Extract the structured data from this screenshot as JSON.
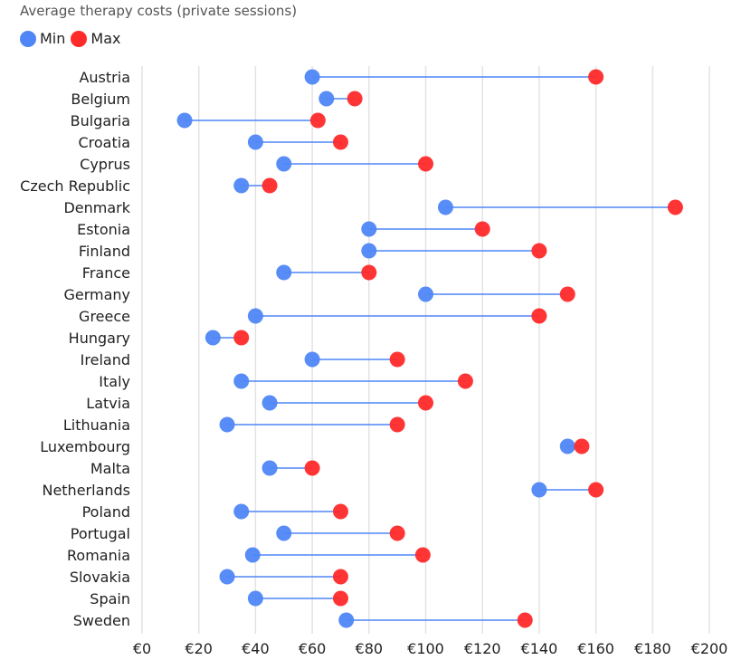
{
  "chart_data": {
    "type": "dumbbell",
    "title": "Average therapy costs (private sessions)",
    "legend": [
      {
        "name": "Min",
        "color": "#4f86f7"
      },
      {
        "name": "Max",
        "color": "#ff2a2a"
      }
    ],
    "x_ticks": [
      "€0",
      "€20",
      "€40",
      "€60",
      "€80",
      "€100",
      "€120",
      "€140",
      "€160",
      "€180",
      "€200"
    ],
    "xlim": [
      0,
      200
    ],
    "categories": [
      "Austria",
      "Belgium",
      "Bulgaria",
      "Croatia",
      "Cyprus",
      "Czech Republic",
      "Denmark",
      "Estonia",
      "Finland",
      "France",
      "Germany",
      "Greece",
      "Hungary",
      "Ireland",
      "Italy",
      "Latvia",
      "Lithuania",
      "Luxembourg",
      "Malta",
      "Netherlands",
      "Poland",
      "Portugal",
      "Romania",
      "Slovakia",
      "Spain",
      "Sweden"
    ],
    "series": [
      {
        "name": "Min",
        "values": [
          60,
          65,
          15,
          40,
          50,
          35,
          107,
          80,
          80,
          50,
          100,
          40,
          25,
          60,
          35,
          45,
          30,
          150,
          45,
          140,
          35,
          50,
          39,
          30,
          40,
          72
        ]
      },
      {
        "name": "Max",
        "values": [
          160,
          75,
          62,
          70,
          100,
          45,
          188,
          120,
          140,
          80,
          150,
          140,
          35,
          90,
          114,
          100,
          90,
          155,
          60,
          160,
          70,
          90,
          99,
          70,
          70,
          135
        ]
      }
    ],
    "colors": {
      "min": "#4f86f7",
      "max": "#ff2a2a",
      "line": "#4f86f7",
      "grid": "#e3e3e3"
    }
  }
}
